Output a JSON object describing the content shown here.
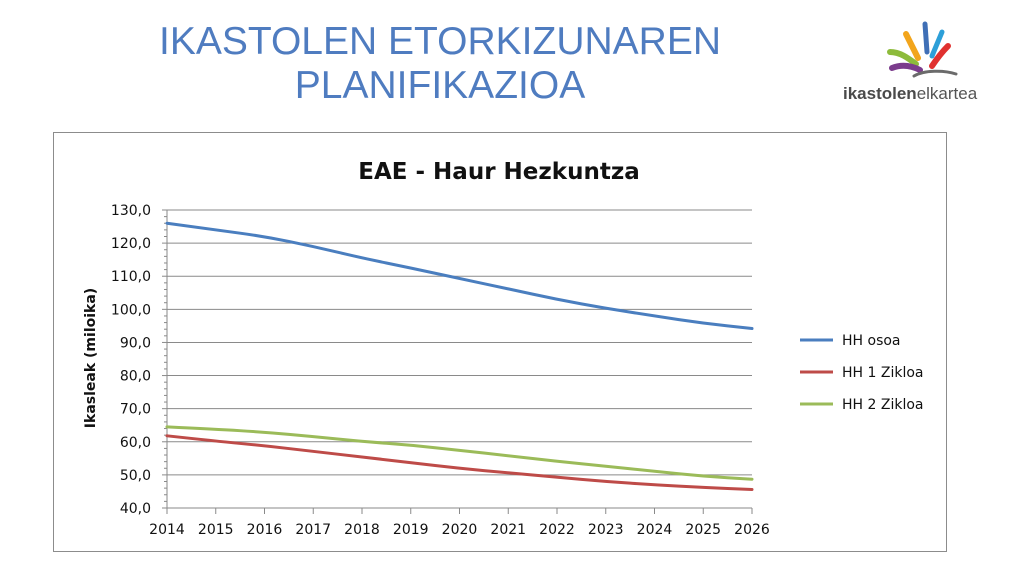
{
  "slide": {
    "title_line1": "IKASTOLEN ETORKIZUNAREN",
    "title_line2": "PLANIFIKAZIOA"
  },
  "logo": {
    "text_bold": "ikastolen",
    "text_regular": "elkartea"
  },
  "colors": {
    "title": "#4f7cc0",
    "hh_osoa": "#4a7ebf",
    "hh_1": "#be4b48",
    "hh_2": "#9bbb59"
  },
  "chart_data": {
    "type": "line",
    "title": "EAE - Haur Hezkuntza",
    "xlabel": "",
    "ylabel": "Ikasleak (miloika)",
    "x": [
      "2014",
      "2015",
      "2016",
      "2017",
      "2018",
      "2019",
      "2020",
      "2021",
      "2022",
      "2023",
      "2024",
      "2025",
      "2026"
    ],
    "y_ticks": [
      "40,0",
      "50,0",
      "60,0",
      "70,0",
      "80,0",
      "90,0",
      "100,0",
      "110,0",
      "120,0",
      "130,0"
    ],
    "ylim": [
      40,
      130
    ],
    "grid": true,
    "legend_position": "right",
    "series": [
      {
        "name": "HH osoa",
        "color": "#4a7ebf",
        "values": [
          126.0,
          124.0,
          122.0,
          119.0,
          115.5,
          112.5,
          109.3,
          106.2,
          103.0,
          100.3,
          98.0,
          95.8,
          94.2
        ]
      },
      {
        "name": "HH 1 Zikloa",
        "color": "#be4b48",
        "values": [
          61.8,
          60.2,
          58.8,
          57.1,
          55.4,
          53.7,
          52.0,
          50.6,
          49.3,
          48.0,
          47.0,
          46.2,
          45.6
        ]
      },
      {
        "name": "HH 2 Zikloa",
        "color": "#9bbb59",
        "values": [
          64.5,
          63.8,
          62.9,
          61.6,
          60.1,
          59.0,
          57.4,
          55.8,
          54.1,
          52.6,
          51.1,
          49.6,
          48.7
        ]
      }
    ]
  }
}
